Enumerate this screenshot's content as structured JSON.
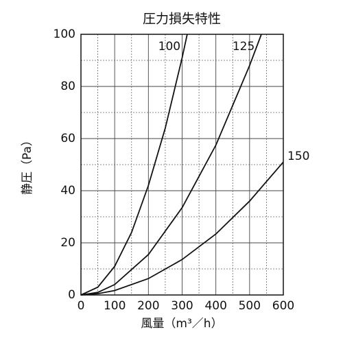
{
  "chart_data": {
    "type": "line",
    "title": "圧力損失特性",
    "x_label": "風量（m³／h）",
    "y_label": "静圧（Pa）",
    "xlim": [
      0,
      600
    ],
    "ylim": [
      0,
      100
    ],
    "xticks": [
      0,
      100,
      200,
      300,
      400,
      500,
      600
    ],
    "yticks": [
      0,
      20,
      40,
      60,
      80,
      100
    ],
    "x_minor_ticks": [
      50,
      150,
      250,
      350,
      450,
      550
    ],
    "y_minor_ticks": [
      10,
      30,
      50,
      70,
      90
    ],
    "grid": true,
    "series": [
      {
        "name": "100",
        "color": "#111111",
        "x": [
          0,
          50,
          100,
          150,
          200,
          250,
          300,
          315
        ],
        "values": [
          0,
          3,
          11,
          24,
          42,
          64,
          91,
          100
        ]
      },
      {
        "name": "125",
        "color": "#111111",
        "x": [
          0,
          50,
          100,
          200,
          300,
          400,
          500,
          535
        ],
        "values": [
          0,
          1,
          4,
          15.5,
          33.5,
          57.5,
          88,
          100
        ]
      },
      {
        "name": "150",
        "color": "#111111",
        "x": [
          0,
          50,
          100,
          200,
          300,
          400,
          500,
          600
        ],
        "values": [
          0,
          0.5,
          1.7,
          6.3,
          13.6,
          23.4,
          36,
          51
        ]
      }
    ]
  }
}
